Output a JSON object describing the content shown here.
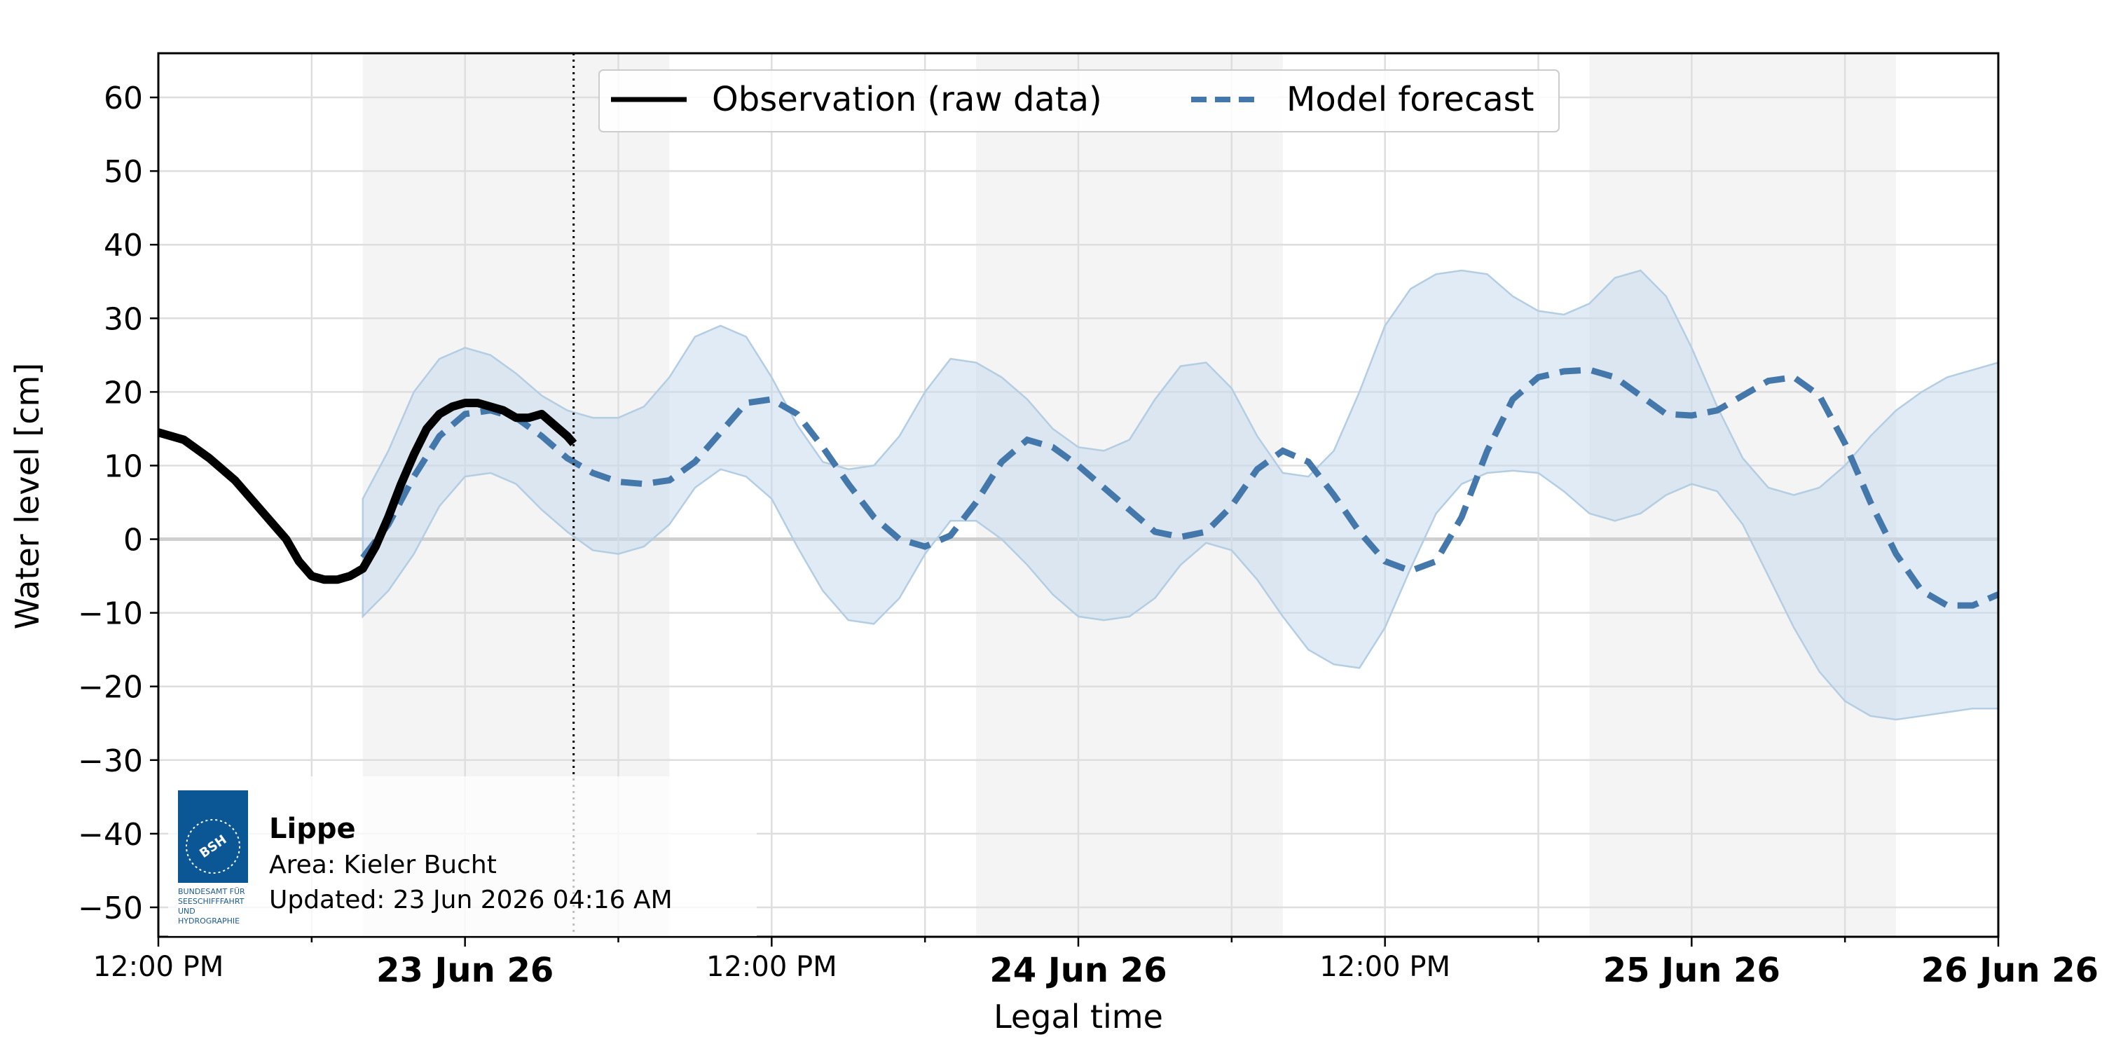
{
  "chart_data": {
    "type": "line",
    "xlabel": "Legal time",
    "ylabel": "Water level [cm]",
    "x_unit": "hours relative to 23 Jun 26 00:00 (legal time)",
    "xlim": [
      -12,
      60
    ],
    "ylim": [
      -54,
      66
    ],
    "y_ticks": [
      "60",
      "50",
      "40",
      "30",
      "20",
      "10",
      "0",
      "−10",
      "−20",
      "−30",
      "−40",
      "−50"
    ],
    "y_tick_values": [
      60,
      50,
      40,
      30,
      20,
      10,
      0,
      -10,
      -20,
      -30,
      -40,
      -50
    ],
    "x_ticks_minor": [
      {
        "x": -12,
        "label": "12:00 PM"
      },
      {
        "x": 12,
        "label": "12:00 PM"
      },
      {
        "x": 36,
        "label": "12:00 PM"
      }
    ],
    "x_ticks_major": [
      {
        "x": 0,
        "label": "23 Jun 26"
      },
      {
        "x": 24,
        "label": "24 Jun 26"
      },
      {
        "x": 48,
        "label": "25 Jun 26"
      },
      {
        "x": 72,
        "label": "26 Jun 26"
      }
    ],
    "night_bands": [
      [
        -4.0,
        8.0
      ],
      [
        20.0,
        32.0
      ],
      [
        44.0,
        56.0
      ],
      [
        68.0,
        72.0
      ]
    ],
    "now_x": 4.25,
    "grid": true,
    "legend_position": "top-center",
    "series": [
      {
        "name": "Observation (raw data)",
        "color": "#000000",
        "style": "solid",
        "x": [
          -12.0,
          -11.0,
          -10.0,
          -9.0,
          -8.0,
          -7.0,
          -6.5,
          -6.0,
          -5.5,
          -5.0,
          -4.5,
          -4.0,
          -3.5,
          -3.0,
          -2.5,
          -2.0,
          -1.5,
          -1.0,
          -0.5,
          0.0,
          0.5,
          1.0,
          1.5,
          2.0,
          2.5,
          3.0,
          3.5,
          4.0,
          4.25
        ],
        "y": [
          14.5,
          13.5,
          11.0,
          8.0,
          4.0,
          0.0,
          -3.0,
          -5.0,
          -5.5,
          -5.5,
          -5.0,
          -4.0,
          -1.0,
          3.0,
          7.5,
          11.5,
          15.0,
          17.0,
          18.0,
          18.5,
          18.5,
          18.0,
          17.5,
          16.5,
          16.5,
          17.0,
          15.5,
          14.0,
          13.0
        ]
      },
      {
        "name": "Model forecast",
        "color": "#4477aa",
        "style": "dashed",
        "x": [
          -4.0,
          -3.0,
          -2.0,
          -1.0,
          0.0,
          1.0,
          2.0,
          3.0,
          4.0,
          5.0,
          6.0,
          7.0,
          8.0,
          9.0,
          10.0,
          11.0,
          12.0,
          13.0,
          14.0,
          15.0,
          16.0,
          17.0,
          18.0,
          19.0,
          20.0,
          21.0,
          22.0,
          23.0,
          24.0,
          25.0,
          26.0,
          27.0,
          28.0,
          29.0,
          30.0,
          31.0,
          32.0,
          33.0,
          34.0,
          35.0,
          36.0,
          37.0,
          38.0,
          39.0,
          40.0,
          41.0,
          42.0,
          43.0,
          44.0,
          45.0,
          46.0,
          47.0,
          48.0,
          49.0,
          50.0,
          51.0,
          52.0,
          53.0,
          54.0,
          55.0,
          56.0,
          57.0,
          58.0,
          59.0,
          60.0
        ],
        "y": [
          -2.5,
          2.0,
          8.5,
          14.0,
          17.0,
          17.5,
          16.5,
          14.0,
          11.0,
          9.0,
          7.8,
          7.5,
          8.0,
          10.5,
          14.5,
          18.5,
          19.0,
          17.0,
          12.5,
          7.5,
          3.0,
          0.0,
          -1.0,
          0.5,
          5.0,
          10.5,
          13.5,
          12.5,
          10.0,
          7.0,
          4.0,
          1.0,
          0.3,
          1.0,
          4.5,
          9.5,
          12.0,
          10.5,
          6.0,
          1.0,
          -3.0,
          -4.3,
          -3.0,
          3.0,
          12.0,
          19.0,
          22.0,
          22.8,
          23.0,
          22.0,
          19.5,
          17.0,
          16.8,
          17.5,
          19.5,
          21.5,
          22.0,
          19.5,
          13.0,
          5.0,
          -2.0,
          -7.0,
          -9.0,
          -9.0,
          -7.5
        ]
      }
    ],
    "uncertainty_band": {
      "color": "#c6dbef",
      "x": [
        -4.0,
        -3.0,
        -2.0,
        -1.0,
        0.0,
        1.0,
        2.0,
        3.0,
        4.0,
        5.0,
        6.0,
        7.0,
        8.0,
        9.0,
        10.0,
        11.0,
        12.0,
        13.0,
        14.0,
        15.0,
        16.0,
        17.0,
        18.0,
        19.0,
        20.0,
        21.0,
        22.0,
        23.0,
        24.0,
        25.0,
        26.0,
        27.0,
        28.0,
        29.0,
        30.0,
        31.0,
        32.0,
        33.0,
        34.0,
        35.0,
        36.0,
        37.0,
        38.0,
        39.0,
        40.0,
        41.0,
        42.0,
        43.0,
        44.0,
        45.0,
        46.0,
        47.0,
        48.0,
        49.0,
        50.0,
        51.0,
        52.0,
        53.0,
        54.0,
        55.0,
        56.0,
        57.0,
        58.0,
        59.0,
        60.0
      ],
      "upper": [
        5.5,
        12.0,
        20.0,
        24.5,
        26.0,
        25.0,
        22.5,
        19.5,
        17.5,
        16.5,
        16.5,
        18.0,
        22.0,
        27.5,
        29.0,
        27.5,
        22.0,
        15.5,
        10.5,
        9.5,
        10.0,
        14.0,
        20.0,
        24.5,
        24.0,
        22.0,
        19.0,
        15.0,
        12.5,
        12.0,
        13.5,
        19.0,
        23.5,
        24.0,
        20.5,
        14.0,
        9.0,
        8.5,
        12.0,
        20.0,
        29.0,
        34.0,
        36.0,
        36.5,
        36.0,
        33.0,
        31.0,
        30.5,
        32.0,
        35.5,
        36.5,
        33.0,
        26.0,
        18.0,
        11.0,
        7.0,
        6.0,
        7.0,
        10.0,
        14.0,
        17.5,
        20.0,
        22.0,
        23.0,
        24.0
      ],
      "lower": [
        -10.5,
        -7.0,
        -2.0,
        4.5,
        8.5,
        9.0,
        7.5,
        4.0,
        1.0,
        -1.5,
        -2.0,
        -1.0,
        2.0,
        7.0,
        9.5,
        8.5,
        5.5,
        -1.0,
        -7.0,
        -11.0,
        -11.5,
        -8.0,
        -2.0,
        2.5,
        2.5,
        0.0,
        -3.5,
        -7.5,
        -10.5,
        -11.0,
        -10.5,
        -8.0,
        -3.5,
        -0.5,
        -1.5,
        -5.5,
        -10.5,
        -15.0,
        -17.0,
        -17.5,
        -12.0,
        -4.0,
        3.5,
        7.5,
        9.0,
        9.3,
        9.0,
        6.5,
        3.5,
        2.5,
        3.5,
        6.0,
        7.5,
        6.5,
        2.0,
        -5.0,
        -12.0,
        -18.0,
        -22.0,
        -24.0,
        -24.5,
        -24.0,
        -23.5,
        -23.0,
        -23.0
      ]
    }
  },
  "info_box": {
    "station": "Lippe",
    "area": "Area: Kieler Bucht",
    "updated": "Updated: 23 Jun 2026 04:16 AM"
  },
  "logo": {
    "badge": "BSH",
    "lines": [
      "BUNDESAMT FÜR",
      "SEESCHIFFFAHRT",
      "UND",
      "HYDROGRAPHIE"
    ]
  }
}
